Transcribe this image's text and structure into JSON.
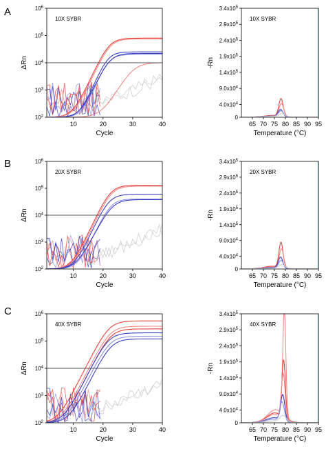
{
  "colors": {
    "red": "#e8413c",
    "red_light": "#f08a85",
    "blue": "#3a3fc4",
    "blue_light": "#8a8fe0",
    "gray": "#cfcfcf",
    "threshold": "#555555",
    "axis": "#000000",
    "cyan_edge": "#7fd0d0"
  },
  "chart_data": [
    {
      "panel": "A",
      "type": "line",
      "annotation": "10X SYBR",
      "xlabel": "Cycle",
      "ylabel": "ΔRn",
      "log_y": true,
      "xlim": [
        1,
        40
      ],
      "ylim": [
        100,
        1000000
      ],
      "x_ticks": [
        10,
        20,
        30,
        40
      ],
      "y_ticks": [
        {
          "value": 100,
          "label": "10",
          "exp": "2"
        },
        {
          "value": 1000,
          "label": "10",
          "exp": "3"
        },
        {
          "value": 10000,
          "label": "10",
          "exp": "4"
        },
        {
          "value": 100000,
          "label": "10",
          "exp": "5"
        },
        {
          "value": 1000000,
          "label": "10",
          "exp": "6"
        }
      ],
      "threshold": 10000,
      "curves": [
        {
          "color": "red",
          "plateau": 80000,
          "mid": 22.0,
          "k": 0.55
        },
        {
          "color": "red_light",
          "plateau": 75000,
          "mid": 22.3,
          "k": 0.55
        },
        {
          "color": "blue",
          "plateau": 25000,
          "mid": 21.5,
          "k": 0.6
        },
        {
          "color": "blue_light",
          "plateau": 20000,
          "mid": 21.8,
          "k": 0.6
        },
        {
          "color": "blue",
          "plateau": 22000,
          "mid": 22.2,
          "k": 0.55
        },
        {
          "color": "red_light",
          "plateau": 10000,
          "mid": 30.0,
          "k": 0.45
        }
      ],
      "noise": true
    },
    {
      "panel": "A",
      "type": "line",
      "annotation": "10X SYBR",
      "xlabel": "Temperature (°C)",
      "ylabel": "-Rn",
      "xlim": [
        60,
        95
      ],
      "ylim": [
        0,
        340000
      ],
      "x_ticks": [
        65,
        70,
        75,
        80,
        85,
        90,
        95
      ],
      "y_ticks": [
        {
          "value": 0,
          "label": "0",
          "exp": ""
        },
        {
          "value": 40000,
          "label": "4.0x10",
          "exp": "4"
        },
        {
          "value": 90000,
          "label": "9.0x10",
          "exp": "4"
        },
        {
          "value": 140000,
          "label": "1.4x10",
          "exp": "5"
        },
        {
          "value": 190000,
          "label": "1.9x10",
          "exp": "5"
        },
        {
          "value": 240000,
          "label": "2.4x10",
          "exp": "5"
        },
        {
          "value": 290000,
          "label": "2.9x10",
          "exp": "5"
        },
        {
          "value": 340000,
          "label": "3.4x10",
          "exp": "5"
        }
      ],
      "peaks": [
        {
          "color": "red",
          "height": 55000,
          "center": 78.0,
          "width": 1.4,
          "base": 5000
        },
        {
          "color": "red_light",
          "height": 40000,
          "center": 78.2,
          "width": 1.5,
          "base": 4000
        },
        {
          "color": "blue",
          "height": 22000,
          "center": 77.8,
          "width": 1.5,
          "base": 3000
        },
        {
          "color": "blue_light",
          "height": 18000,
          "center": 78.0,
          "width": 1.6,
          "base": 3000
        },
        {
          "color": "gray",
          "height": 9000,
          "center": 78.5,
          "width": 2.0,
          "base": 2000
        }
      ]
    },
    {
      "panel": "B",
      "type": "line",
      "annotation": "20X SYBR",
      "xlabel": "Cycle",
      "ylabel": "ΔRn",
      "log_y": true,
      "xlim": [
        1,
        40
      ],
      "ylim": [
        100,
        1000000
      ],
      "x_ticks": [
        10,
        20,
        30,
        40
      ],
      "y_ticks": [
        {
          "value": 100,
          "label": "10",
          "exp": "2"
        },
        {
          "value": 1000,
          "label": "10",
          "exp": "3"
        },
        {
          "value": 10000,
          "label": "10",
          "exp": "4"
        },
        {
          "value": 100000,
          "label": "10",
          "exp": "5"
        },
        {
          "value": 1000000,
          "label": "10",
          "exp": "6"
        }
      ],
      "threshold": 10000,
      "curves": [
        {
          "color": "red",
          "plateau": 130000,
          "mid": 22.5,
          "k": 0.55
        },
        {
          "color": "red_light",
          "plateau": 120000,
          "mid": 22.8,
          "k": 0.55
        },
        {
          "color": "blue",
          "plateau": 60000,
          "mid": 22.0,
          "k": 0.55
        },
        {
          "color": "blue_light",
          "plateau": 40000,
          "mid": 22.5,
          "k": 0.55
        },
        {
          "color": "blue",
          "plateau": 38000,
          "mid": 23.0,
          "k": 0.5
        }
      ],
      "noise": true
    },
    {
      "panel": "B",
      "type": "line",
      "annotation": "20X SYBR",
      "xlabel": "Temperature (°C)",
      "ylabel": "-Rn",
      "xlim": [
        60,
        95
      ],
      "ylim": [
        0,
        340000
      ],
      "x_ticks": [
        65,
        70,
        75,
        80,
        85,
        90,
        95
      ],
      "y_ticks": [
        {
          "value": 0,
          "label": "0",
          "exp": ""
        },
        {
          "value": 40000,
          "label": "4.0x10",
          "exp": "4"
        },
        {
          "value": 90000,
          "label": "9.0x10",
          "exp": "4"
        },
        {
          "value": 140000,
          "label": "1.4x10",
          "exp": "5"
        },
        {
          "value": 190000,
          "label": "1.9x10",
          "exp": "5"
        },
        {
          "value": 240000,
          "label": "2.4x10",
          "exp": "5"
        },
        {
          "value": 290000,
          "label": "2.9x10",
          "exp": "5"
        },
        {
          "value": 340000,
          "label": "3.4x10",
          "exp": "5"
        }
      ],
      "peaks": [
        {
          "color": "red",
          "height": 80000,
          "center": 78.0,
          "width": 1.3,
          "base": 8000
        },
        {
          "color": "red_light",
          "height": 60000,
          "center": 78.2,
          "width": 1.4,
          "base": 6000
        },
        {
          "color": "blue",
          "height": 35000,
          "center": 77.8,
          "width": 1.4,
          "base": 4000
        },
        {
          "color": "blue_light",
          "height": 25000,
          "center": 78.0,
          "width": 1.5,
          "base": 3000
        },
        {
          "color": "gray",
          "height": 12000,
          "center": 78.5,
          "width": 2.0,
          "base": 2000
        }
      ]
    },
    {
      "panel": "C",
      "type": "line",
      "annotation": "40X SYBR",
      "xlabel": "Cycle",
      "ylabel": "ΔRn",
      "log_y": true,
      "xlim": [
        1,
        40
      ],
      "ylim": [
        100,
        1000000
      ],
      "x_ticks": [
        10,
        20,
        30,
        40
      ],
      "y_ticks": [
        {
          "value": 100,
          "label": "10",
          "exp": "2"
        },
        {
          "value": 1000,
          "label": "10",
          "exp": "3"
        },
        {
          "value": 10000,
          "label": "10",
          "exp": "4"
        },
        {
          "value": 100000,
          "label": "10",
          "exp": "5"
        },
        {
          "value": 1000000,
          "label": "10",
          "exp": "6"
        }
      ],
      "threshold": 10000,
      "curves": [
        {
          "color": "red",
          "plateau": 550000,
          "mid": 22.0,
          "k": 0.5
        },
        {
          "color": "red_light",
          "plateau": 350000,
          "mid": 22.3,
          "k": 0.5
        },
        {
          "color": "red",
          "plateau": 280000,
          "mid": 22.5,
          "k": 0.5
        },
        {
          "color": "blue",
          "plateau": 200000,
          "mid": 21.8,
          "k": 0.5
        },
        {
          "color": "blue_light",
          "plateau": 150000,
          "mid": 22.2,
          "k": 0.5
        },
        {
          "color": "blue",
          "plateau": 120000,
          "mid": 22.7,
          "k": 0.5
        }
      ],
      "noise": true
    },
    {
      "panel": "C",
      "type": "line",
      "annotation": "40X SYBR",
      "xlabel": "Temperature (°C)",
      "ylabel": "-Rn",
      "xlim": [
        60,
        95
      ],
      "ylim": [
        0,
        340000
      ],
      "x_ticks": [
        65,
        70,
        75,
        80,
        85,
        90,
        95
      ],
      "y_ticks": [
        {
          "value": 0,
          "label": "0",
          "exp": ""
        },
        {
          "value": 40000,
          "label": "4.0x10",
          "exp": "4"
        },
        {
          "value": 90000,
          "label": "9.0x10",
          "exp": "4"
        },
        {
          "value": 140000,
          "label": "1.4x10",
          "exp": "5"
        },
        {
          "value": 190000,
          "label": "1.9x10",
          "exp": "5"
        },
        {
          "value": 240000,
          "label": "2.4x10",
          "exp": "5"
        },
        {
          "value": 290000,
          "label": "2.9x10",
          "exp": "5"
        },
        {
          "value": 340000,
          "label": "3.4x10",
          "exp": "5"
        }
      ],
      "peaks": [
        {
          "color": "red_light",
          "height": 330000,
          "center": 79.5,
          "width": 1.0,
          "base": 40000
        },
        {
          "color": "red",
          "height": 180000,
          "center": 79.2,
          "width": 1.1,
          "base": 30000
        },
        {
          "color": "red_light",
          "height": 140000,
          "center": 79.0,
          "width": 1.2,
          "base": 25000
        },
        {
          "color": "blue",
          "height": 80000,
          "center": 78.8,
          "width": 1.3,
          "base": 15000
        },
        {
          "color": "blue_light",
          "height": 60000,
          "center": 78.5,
          "width": 1.4,
          "base": 10000
        },
        {
          "color": "gray",
          "height": 20000,
          "center": 79.0,
          "width": 2.0,
          "base": 5000
        }
      ]
    }
  ]
}
